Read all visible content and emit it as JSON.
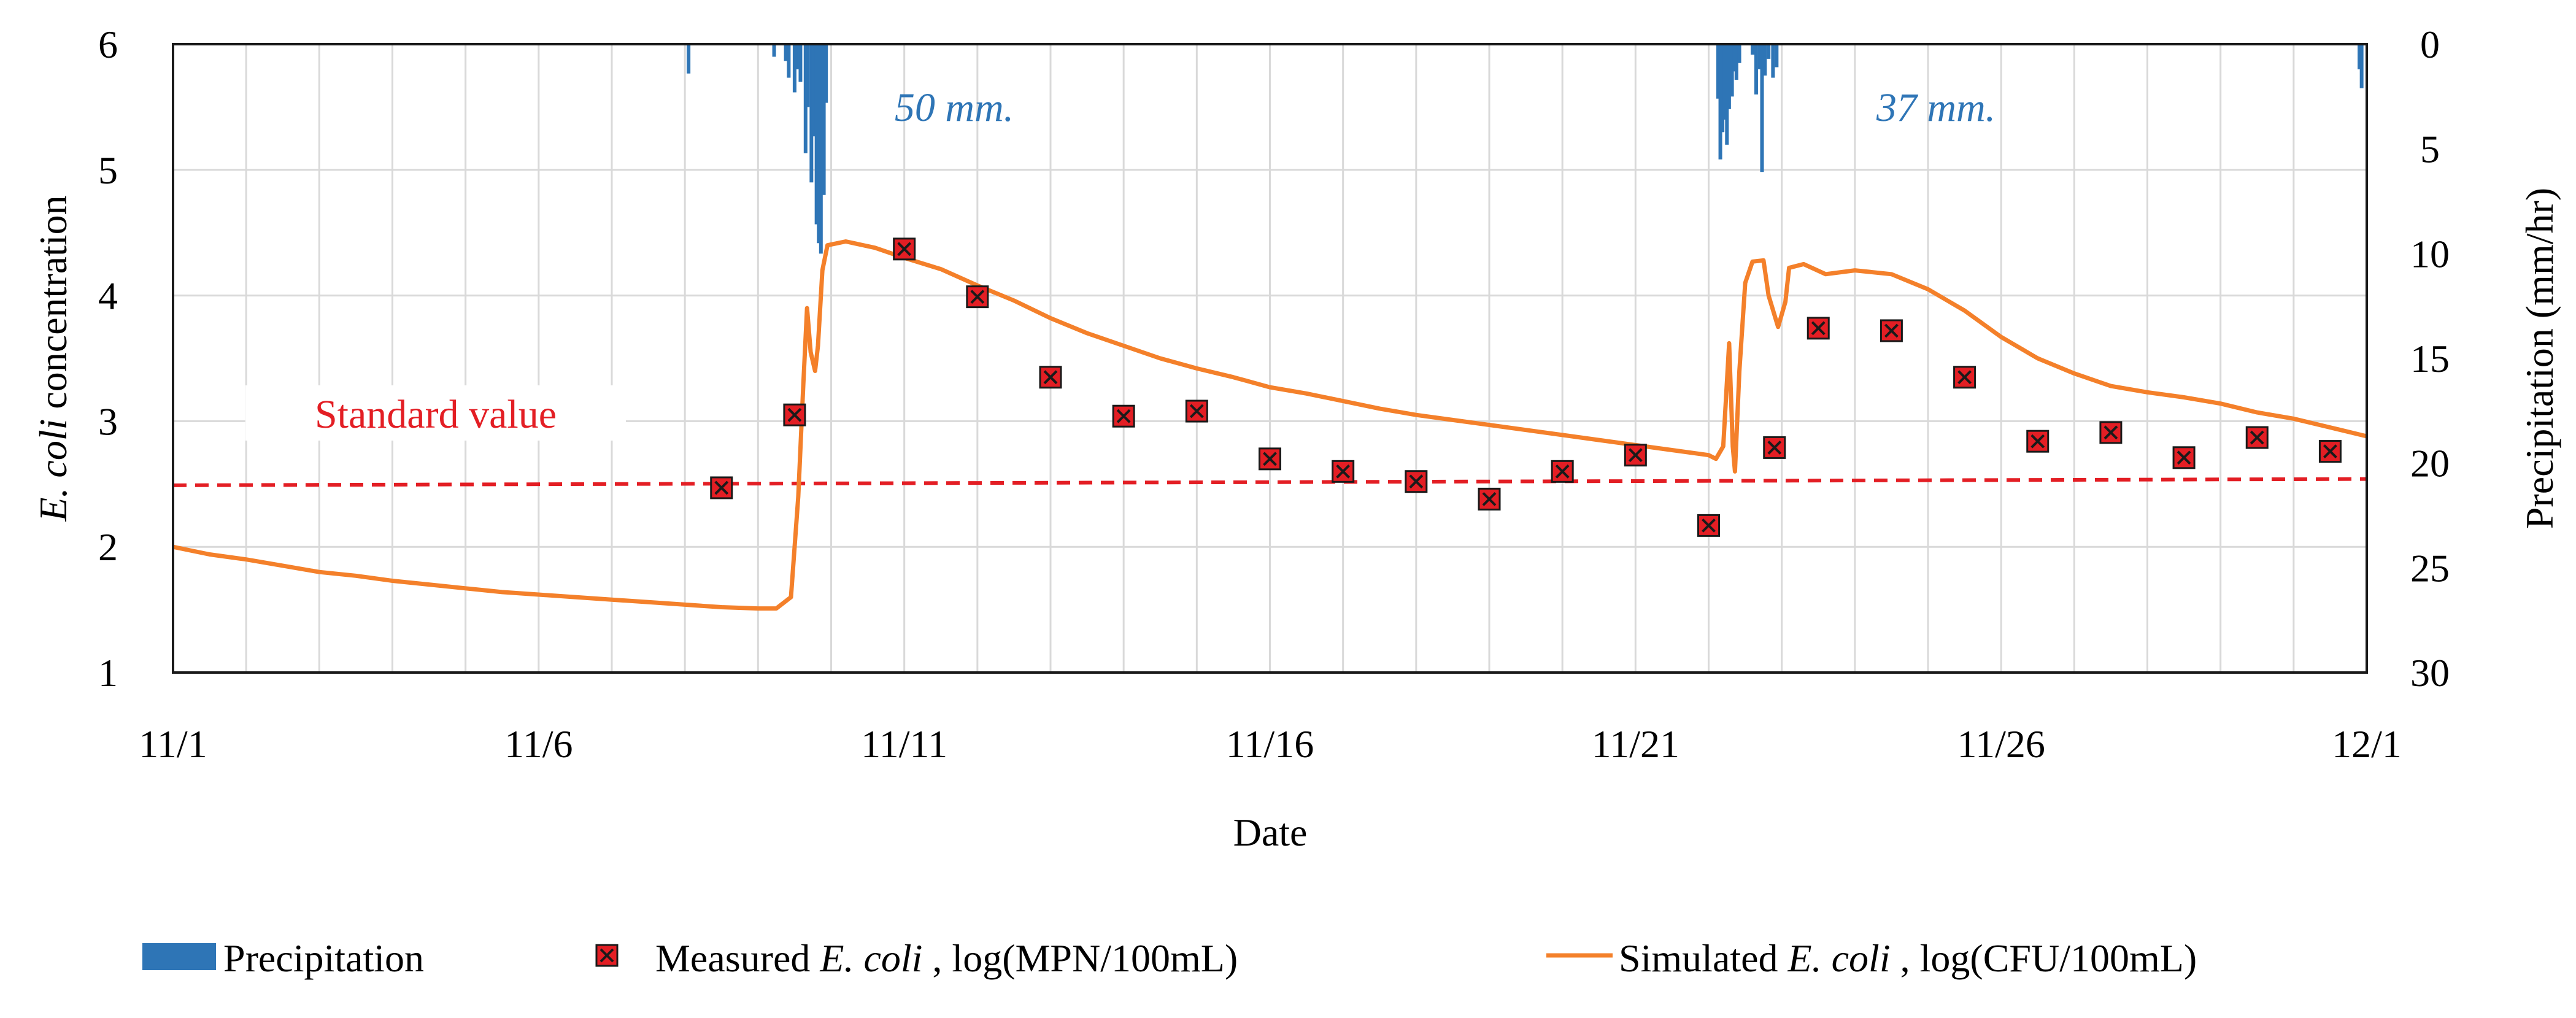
{
  "chart_data": {
    "type": "line",
    "xlabel": "Date",
    "ylabel_parts": [
      "E. coli",
      " concentration"
    ],
    "y2label": "Precipitation (mm/hr)",
    "x_range_days": [
      0,
      30
    ],
    "ylim": [
      1,
      6
    ],
    "y2lim": [
      0,
      30
    ],
    "y2_inverted": true,
    "x_ticks": [
      {
        "day": 0,
        "label": "11/1"
      },
      {
        "day": 5,
        "label": "11/6"
      },
      {
        "day": 10,
        "label": "11/11"
      },
      {
        "day": 15,
        "label": "11/16"
      },
      {
        "day": 20,
        "label": "11/21"
      },
      {
        "day": 25,
        "label": "11/26"
      },
      {
        "day": 30,
        "label": "12/1"
      }
    ],
    "y_ticks": [
      {
        "value": 1,
        "label": "1"
      },
      {
        "value": 2,
        "label": "2"
      },
      {
        "value": 3,
        "label": "3"
      },
      {
        "value": 4,
        "label": "4"
      },
      {
        "value": 5,
        "label": "5"
      },
      {
        "value": 6,
        "label": "6"
      }
    ],
    "y2_ticks": [
      {
        "value": 0,
        "label": "0"
      },
      {
        "value": 5,
        "label": "5"
      },
      {
        "value": 10,
        "label": "10"
      },
      {
        "value": 15,
        "label": "15"
      },
      {
        "value": 20,
        "label": "20"
      },
      {
        "value": 25,
        "label": "25"
      },
      {
        "value": 30,
        "label": "30"
      }
    ],
    "grid": true,
    "standard_value": {
      "label": "Standard value",
      "points": [
        [
          0,
          2.49
        ],
        [
          30,
          2.54
        ]
      ],
      "color": "#e31e24"
    },
    "annotations": [
      {
        "text": "50 mm.",
        "x_day": 10.4,
        "y_value": 5.48
      },
      {
        "text": "37 mm.",
        "x_day": 23.8,
        "y_value": 5.48
      }
    ],
    "series": [
      {
        "name": "Precipitation",
        "type": "bar",
        "axis": "y2",
        "color": "#2e75b6",
        "points": [
          [
            7.05,
            1.4
          ],
          [
            8.22,
            0.6
          ],
          [
            8.38,
            0.8
          ],
          [
            8.42,
            1.6
          ],
          [
            8.5,
            2.3
          ],
          [
            8.53,
            1.2
          ],
          [
            8.58,
            1.8
          ],
          [
            8.65,
            5.2
          ],
          [
            8.68,
            3.0
          ],
          [
            8.73,
            6.6
          ],
          [
            8.76,
            4.4
          ],
          [
            8.8,
            8.6
          ],
          [
            8.83,
            9.5
          ],
          [
            8.86,
            10.0
          ],
          [
            8.9,
            7.2
          ],
          [
            8.93,
            2.8
          ],
          [
            21.13,
            2.6
          ],
          [
            21.16,
            5.5
          ],
          [
            21.19,
            4.2
          ],
          [
            21.22,
            3.6
          ],
          [
            21.25,
            4.8
          ],
          [
            21.28,
            3.1
          ],
          [
            21.32,
            2.5
          ],
          [
            21.35,
            1.3
          ],
          [
            21.38,
            1.7
          ],
          [
            21.42,
            0.9
          ],
          [
            21.6,
            0.5
          ],
          [
            21.65,
            2.4
          ],
          [
            21.7,
            1.2
          ],
          [
            21.73,
            6.1
          ],
          [
            21.77,
            1.5
          ],
          [
            21.82,
            0.7
          ],
          [
            21.88,
            1.6
          ],
          [
            21.93,
            1.1
          ],
          [
            29.9,
            1.2
          ],
          [
            29.93,
            2.1
          ]
        ]
      },
      {
        "name_parts": [
          "Measured ",
          "E. coli",
          " , log(MPN/100mL)"
        ],
        "type": "scatter",
        "axis": "y",
        "color": "#e31e24",
        "points": [
          [
            7.5,
            2.47
          ],
          [
            8.5,
            3.05
          ],
          [
            10.0,
            4.37
          ],
          [
            11.0,
            3.99
          ],
          [
            12.0,
            3.35
          ],
          [
            13.0,
            3.04
          ],
          [
            14.0,
            3.08
          ],
          [
            15.0,
            2.7
          ],
          [
            16.0,
            2.6
          ],
          [
            17.0,
            2.52
          ],
          [
            18.0,
            2.38
          ],
          [
            19.0,
            2.6
          ],
          [
            20.0,
            2.73
          ],
          [
            21.0,
            2.17
          ],
          [
            21.9,
            2.79
          ],
          [
            22.5,
            3.74
          ],
          [
            23.5,
            3.72
          ],
          [
            24.5,
            3.35
          ],
          [
            25.5,
            2.84
          ],
          [
            26.5,
            2.91
          ],
          [
            27.5,
            2.71
          ],
          [
            28.5,
            2.87
          ],
          [
            29.5,
            2.76
          ]
        ]
      },
      {
        "name_parts": [
          "Simulated ",
          "E. coli",
          " , log(CFU/100mL)"
        ],
        "type": "line",
        "axis": "y",
        "color": "#f4802a",
        "points": [
          [
            0.0,
            2.0
          ],
          [
            0.5,
            1.94
          ],
          [
            1.0,
            1.9
          ],
          [
            1.5,
            1.85
          ],
          [
            2.0,
            1.8
          ],
          [
            2.5,
            1.77
          ],
          [
            3.0,
            1.73
          ],
          [
            3.5,
            1.7
          ],
          [
            4.0,
            1.67
          ],
          [
            4.5,
            1.64
          ],
          [
            5.0,
            1.62
          ],
          [
            5.5,
            1.6
          ],
          [
            6.0,
            1.58
          ],
          [
            6.5,
            1.56
          ],
          [
            7.0,
            1.54
          ],
          [
            7.5,
            1.52
          ],
          [
            8.0,
            1.51
          ],
          [
            8.25,
            1.51
          ],
          [
            8.45,
            1.6
          ],
          [
            8.55,
            2.4
          ],
          [
            8.62,
            3.3
          ],
          [
            8.67,
            3.9
          ],
          [
            8.72,
            3.55
          ],
          [
            8.78,
            3.4
          ],
          [
            8.82,
            3.6
          ],
          [
            8.88,
            4.2
          ],
          [
            8.95,
            4.4
          ],
          [
            9.2,
            4.43
          ],
          [
            9.6,
            4.38
          ],
          [
            10.0,
            4.3
          ],
          [
            10.5,
            4.21
          ],
          [
            11.0,
            4.08
          ],
          [
            11.5,
            3.96
          ],
          [
            12.0,
            3.82
          ],
          [
            12.5,
            3.7
          ],
          [
            13.0,
            3.6
          ],
          [
            13.5,
            3.5
          ],
          [
            14.0,
            3.42
          ],
          [
            14.5,
            3.35
          ],
          [
            15.0,
            3.27
          ],
          [
            15.5,
            3.22
          ],
          [
            16.0,
            3.16
          ],
          [
            16.5,
            3.1
          ],
          [
            17.0,
            3.05
          ],
          [
            17.5,
            3.01
          ],
          [
            18.0,
            2.97
          ],
          [
            18.5,
            2.93
          ],
          [
            19.0,
            2.89
          ],
          [
            19.5,
            2.85
          ],
          [
            20.0,
            2.81
          ],
          [
            20.5,
            2.77
          ],
          [
            21.0,
            2.73
          ],
          [
            21.1,
            2.7
          ],
          [
            21.2,
            2.8
          ],
          [
            21.28,
            3.62
          ],
          [
            21.33,
            2.8
          ],
          [
            21.36,
            2.6
          ],
          [
            21.42,
            3.4
          ],
          [
            21.5,
            4.1
          ],
          [
            21.6,
            4.27
          ],
          [
            21.75,
            4.28
          ],
          [
            21.82,
            4.0
          ],
          [
            21.95,
            3.75
          ],
          [
            22.05,
            3.95
          ],
          [
            22.1,
            4.22
          ],
          [
            22.3,
            4.25
          ],
          [
            22.6,
            4.17
          ],
          [
            23.0,
            4.2
          ],
          [
            23.5,
            4.17
          ],
          [
            24.0,
            4.05
          ],
          [
            24.5,
            3.88
          ],
          [
            25.0,
            3.67
          ],
          [
            25.5,
            3.5
          ],
          [
            26.0,
            3.38
          ],
          [
            26.5,
            3.28
          ],
          [
            27.0,
            3.23
          ],
          [
            27.5,
            3.19
          ],
          [
            28.0,
            3.14
          ],
          [
            28.5,
            3.07
          ],
          [
            29.0,
            3.02
          ],
          [
            29.5,
            2.95
          ],
          [
            30.0,
            2.88
          ]
        ]
      }
    ]
  },
  "legend": {
    "precipitation": "Precipitation",
    "measured": [
      "Measured ",
      "E. coli",
      " , log(MPN/100mL)"
    ],
    "simulated": [
      "Simulated ",
      "E. coli",
      " , log(CFU/100mL)"
    ]
  }
}
